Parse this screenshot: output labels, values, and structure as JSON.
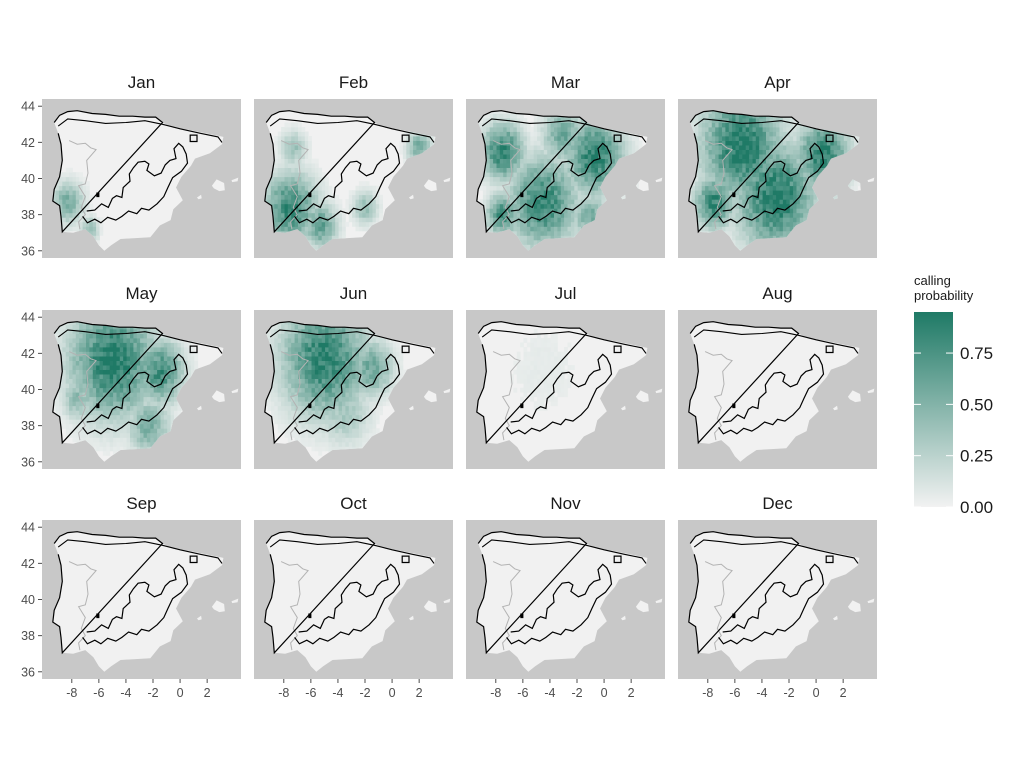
{
  "chart_data": {
    "type": "heatmap",
    "description_kind": "faceted monthly maps",
    "panels": [
      {
        "title": "Jan",
        "hotspots": [
          {
            "lon": -8.3,
            "lat": 38.7,
            "r": 1.2,
            "p": 0.55
          },
          {
            "lon": -6.7,
            "lat": 37.2,
            "r": 0.7,
            "p": 0.45
          }
        ]
      },
      {
        "title": "Feb",
        "hotspots": [
          {
            "lon": -7.5,
            "lat": 38.4,
            "r": 2.0,
            "p": 0.85
          },
          {
            "lon": -5.3,
            "lat": 37.4,
            "r": 1.3,
            "p": 0.65
          },
          {
            "lon": -2.0,
            "lat": 38.4,
            "r": 1.0,
            "p": 0.4
          },
          {
            "lon": 2.0,
            "lat": 41.7,
            "r": 0.9,
            "p": 0.6
          },
          {
            "lon": -7.3,
            "lat": 41.7,
            "r": 1.0,
            "p": 0.4
          }
        ]
      },
      {
        "title": "Mar",
        "hotspots": [
          {
            "lon": -7.5,
            "lat": 41.5,
            "r": 1.6,
            "p": 0.9
          },
          {
            "lon": -4.5,
            "lat": 38.7,
            "r": 2.6,
            "p": 0.85
          },
          {
            "lon": -0.7,
            "lat": 41.2,
            "r": 2.2,
            "p": 0.9
          },
          {
            "lon": -7.5,
            "lat": 38.0,
            "r": 1.2,
            "p": 0.8
          },
          {
            "lon": -3.0,
            "lat": 42.4,
            "r": 1.6,
            "p": 0.6
          },
          {
            "lon": -1.0,
            "lat": 37.9,
            "r": 1.4,
            "p": 0.55
          }
        ]
      },
      {
        "title": "Apr",
        "hotspots": [
          {
            "lon": -5.5,
            "lat": 41.8,
            "r": 3.0,
            "p": 0.98
          },
          {
            "lon": -3.0,
            "lat": 39.0,
            "r": 3.0,
            "p": 0.95
          },
          {
            "lon": 0.5,
            "lat": 41.3,
            "r": 2.0,
            "p": 0.9
          },
          {
            "lon": -7.5,
            "lat": 38.7,
            "r": 1.5,
            "p": 0.85
          }
        ]
      },
      {
        "title": "May",
        "hotspots": [
          {
            "lon": -5.0,
            "lat": 41.6,
            "r": 3.2,
            "p": 0.95
          },
          {
            "lon": -1.5,
            "lat": 41.0,
            "r": 1.8,
            "p": 0.8
          },
          {
            "lon": -2.3,
            "lat": 38.0,
            "r": 1.6,
            "p": 0.55
          },
          {
            "lon": -7.6,
            "lat": 39.5,
            "r": 1.2,
            "p": 0.45
          }
        ]
      },
      {
        "title": "Jun",
        "hotspots": [
          {
            "lon": -5.0,
            "lat": 41.7,
            "r": 3.2,
            "p": 0.9
          },
          {
            "lon": -1.5,
            "lat": 41.2,
            "r": 1.6,
            "p": 0.6
          },
          {
            "lon": -3.5,
            "lat": 38.8,
            "r": 2.0,
            "p": 0.35
          }
        ]
      },
      {
        "title": "Jul",
        "hotspots": [
          {
            "lon": -4.5,
            "lat": 41.0,
            "r": 3.5,
            "p": 0.06
          }
        ]
      },
      {
        "title": "Aug",
        "hotspots": []
      },
      {
        "title": "Sep",
        "hotspots": []
      },
      {
        "title": "Oct",
        "hotspots": []
      },
      {
        "title": "Nov",
        "hotspots": []
      },
      {
        "title": "Dec",
        "hotspots": []
      }
    ],
    "x_axis": {
      "ticks": [
        -8,
        -6,
        -4,
        -2,
        0,
        2
      ],
      "labels": [
        "-8",
        "-6",
        "-4",
        "-2",
        "0",
        "2"
      ],
      "range": [
        -10.2,
        4.5
      ]
    },
    "y_axis": {
      "ticks": [
        36,
        38,
        40,
        42,
        44
      ],
      "labels": [
        "36",
        "38",
        "40",
        "42",
        "44"
      ],
      "range": [
        35.6,
        44.4
      ]
    },
    "legend": {
      "title_lines": [
        "calling",
        "probability"
      ],
      "breaks": [
        0.0,
        0.25,
        0.5,
        0.75
      ],
      "labels": [
        "0.00",
        "0.25",
        "0.50",
        "0.75"
      ],
      "limits": [
        0,
        0.95
      ],
      "low_color": "#f2f2f2",
      "high_color": "#1f7a66"
    },
    "colors": {
      "panel_background": "#c8c8c8",
      "land_fill": "#f1f1f1",
      "region_outline": "#000000",
      "border_line": "#b3b3b3",
      "tick_color": "#4d4d4d"
    }
  }
}
